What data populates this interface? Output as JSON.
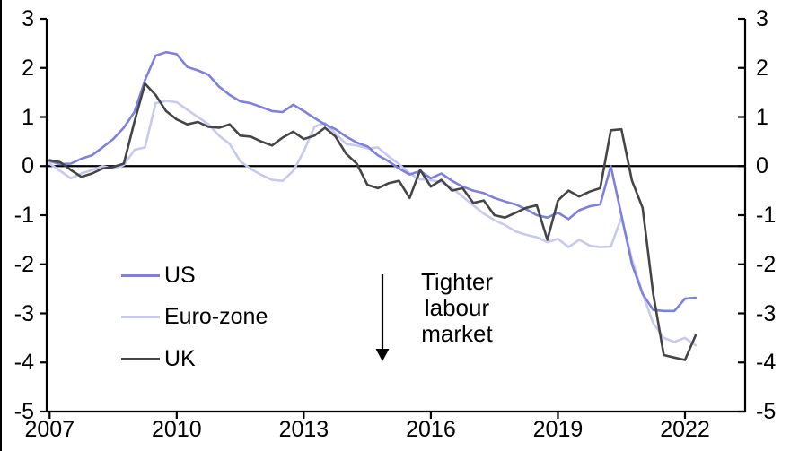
{
  "chart_data": {
    "type": "line",
    "title": "",
    "x_axis": {
      "ticks": [
        2007,
        2010,
        2013,
        2016,
        2019,
        2022
      ],
      "min": 2006.93,
      "max": 2023.42
    },
    "y_axis": {
      "ticks": [
        3,
        2,
        1,
        0,
        -1,
        -2,
        -3,
        -4,
        -5
      ],
      "min": -5,
      "max": 3,
      "dual_sided": true
    },
    "zero_line": true,
    "grid": false,
    "x_start": 2007.0,
    "x_step": 0.25,
    "x_unit": "quarter",
    "axis_color": "#000000",
    "series": [
      {
        "name": "US",
        "color": "#7d80de",
        "values": [
          0.1,
          0.04,
          0.05,
          0.15,
          0.22,
          0.38,
          0.55,
          0.78,
          1.1,
          1.75,
          2.25,
          2.32,
          2.28,
          2.02,
          1.95,
          1.86,
          1.62,
          1.45,
          1.32,
          1.28,
          1.2,
          1.12,
          1.1,
          1.25,
          1.12,
          0.98,
          0.85,
          0.75,
          0.6,
          0.48,
          0.4,
          0.22,
          0.1,
          -0.05,
          -0.17,
          -0.1,
          -0.25,
          -0.15,
          -0.3,
          -0.42,
          -0.5,
          -0.55,
          -0.65,
          -0.72,
          -0.78,
          -0.88,
          -1.0,
          -1.05,
          -0.95,
          -1.08,
          -0.9,
          -0.82,
          -0.78,
          0.0,
          -1.0,
          -2.0,
          -2.6,
          -2.93,
          -2.95,
          -2.95,
          -2.7,
          -2.68
        ]
      },
      {
        "name": "Euro-zone",
        "color": "#c7c9f1",
        "values": [
          0.05,
          -0.1,
          -0.25,
          -0.15,
          -0.08,
          0.0,
          -0.05,
          0.02,
          0.33,
          0.38,
          1.28,
          1.33,
          1.3,
          1.15,
          1.0,
          0.85,
          0.62,
          0.45,
          0.1,
          -0.06,
          -0.18,
          -0.28,
          -0.3,
          -0.1,
          0.3,
          0.8,
          0.88,
          0.66,
          0.45,
          0.42,
          0.36,
          0.38,
          0.2,
          0.04,
          -0.15,
          -0.27,
          -0.29,
          -0.32,
          -0.45,
          -0.62,
          -0.8,
          -0.97,
          -1.1,
          -1.2,
          -1.33,
          -1.4,
          -1.45,
          -1.55,
          -1.48,
          -1.65,
          -1.5,
          -1.62,
          -1.65,
          -1.64,
          -1.05,
          -1.9,
          -2.6,
          -3.2,
          -3.5,
          -3.58,
          -3.5,
          -3.65
        ]
      },
      {
        "name": "UK",
        "color": "#454545",
        "values": [
          0.12,
          0.08,
          -0.08,
          -0.22,
          -0.15,
          -0.05,
          -0.02,
          0.05,
          0.9,
          1.68,
          1.45,
          1.12,
          0.95,
          0.85,
          0.9,
          0.8,
          0.78,
          0.85,
          0.62,
          0.6,
          0.5,
          0.42,
          0.58,
          0.7,
          0.55,
          0.62,
          0.78,
          0.6,
          0.25,
          0.05,
          -0.38,
          -0.45,
          -0.35,
          -0.3,
          -0.65,
          -0.08,
          -0.42,
          -0.28,
          -0.5,
          -0.45,
          -0.75,
          -0.7,
          -1.0,
          -1.05,
          -0.95,
          -0.85,
          -0.8,
          -1.5,
          -0.7,
          -0.5,
          -0.62,
          -0.52,
          -0.45,
          0.73,
          0.75,
          -0.3,
          -0.85,
          -2.6,
          -3.85,
          -3.9,
          -3.95,
          -3.45
        ]
      }
    ],
    "draw_order": [
      1,
      0,
      2
    ],
    "legend": {
      "position": "inside-lower-left",
      "items": [
        "US",
        "Euro-zone",
        "UK"
      ]
    },
    "annotation": {
      "lines": [
        "Tighter",
        "labour",
        "market"
      ],
      "arrow": "down"
    }
  }
}
